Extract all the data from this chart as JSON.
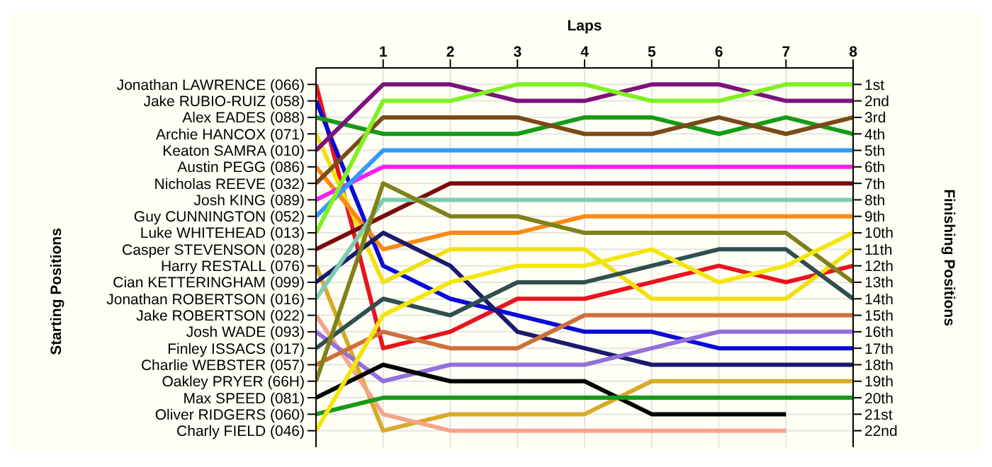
{
  "chart_data": {
    "type": "line",
    "xlabel": "Laps",
    "annotations": [
      "Starting Positions"
    ],
    "y2label": "Finishing Positions",
    "x": [
      0,
      1,
      2,
      3,
      4,
      5,
      6,
      7,
      8
    ],
    "xlim": [
      0,
      8
    ],
    "xticks": [
      1,
      2,
      3,
      4,
      5,
      6,
      7,
      8
    ],
    "y_categories": [
      "Jonathan LAWRENCE (066)",
      "Jake RUBIO-RUIZ (058)",
      "Alex EADES (088)",
      "Archie HANCOX (071)",
      "Keaton SAMRA (010)",
      "Austin PEGG (086)",
      "Nicholas REEVE (032)",
      "Josh KING (089)",
      "Guy CUNNINGTON (052)",
      "Luke WHITEHEAD (013)",
      "Casper STEVENSON (028)",
      "Harry RESTALL (076)",
      "Cian KETTERINGHAM (099)",
      "Jonathan ROBERTSON (016)",
      "Jake ROBERTSON (022)",
      "Josh WADE (093)",
      "Finley ISSACS (017)",
      "Charlie WEBSTER (057)",
      "Oakley PRYER (66H)",
      "Max SPEED (081)",
      "Oliver RIDGERS (060)",
      "Charly FIELD (046)"
    ],
    "y2lim": [
      23,
      0
    ],
    "y2ticks": [
      {
        "value": 1,
        "label": "1st"
      },
      {
        "value": 2,
        "label": "2nd"
      },
      {
        "value": 3,
        "label": "3rd"
      },
      {
        "value": 4,
        "label": "4th"
      },
      {
        "value": 5,
        "label": "5th"
      },
      {
        "value": 6,
        "label": "6th"
      },
      {
        "value": 7,
        "label": "7th"
      },
      {
        "value": 8,
        "label": "8th"
      },
      {
        "value": 9,
        "label": "9th"
      },
      {
        "value": 10,
        "label": "10th"
      },
      {
        "value": 11,
        "label": "11th"
      },
      {
        "value": 12,
        "label": "12th"
      },
      {
        "value": 13,
        "label": "13th"
      },
      {
        "value": 14,
        "label": "14th"
      },
      {
        "value": 15,
        "label": "15th"
      },
      {
        "value": 16,
        "label": "16th"
      },
      {
        "value": 17,
        "label": "17th"
      },
      {
        "value": 18,
        "label": "18th"
      },
      {
        "value": 19,
        "label": "19th"
      },
      {
        "value": 20,
        "label": "20th"
      },
      {
        "value": 21,
        "label": "21st"
      },
      {
        "value": 22,
        "label": "22nd"
      }
    ],
    "grid": true,
    "legend": false,
    "marker": "none",
    "line_style": "solid",
    "series": [
      {
        "axis": "y2",
        "color": "#e8141c",
        "values": [
          1,
          17,
          16,
          14,
          14,
          13,
          12,
          13,
          12
        ]
      },
      {
        "axis": "y2",
        "color": "#0b0bd6",
        "values": [
          2,
          12,
          14,
          15,
          16,
          16,
          17,
          17,
          17
        ]
      },
      {
        "axis": "y2",
        "color": "#169b16",
        "values": [
          3,
          4,
          4,
          4,
          3,
          3,
          4,
          3,
          4
        ]
      },
      {
        "axis": "y2",
        "color": "#f2e010",
        "values": [
          4,
          13,
          11,
          11,
          11,
          14,
          14,
          14,
          11
        ]
      },
      {
        "axis": "y2",
        "color": "#7b137b",
        "values": [
          5,
          1,
          1,
          2,
          2,
          1,
          1,
          2,
          2
        ]
      },
      {
        "axis": "y2",
        "color": "#f98a14",
        "values": [
          6,
          11,
          10,
          10,
          9,
          9,
          9,
          9,
          9
        ]
      },
      {
        "axis": "y2",
        "color": "#7b4a17",
        "values": [
          7,
          3,
          3,
          3,
          4,
          4,
          3,
          4,
          3
        ]
      },
      {
        "axis": "y2",
        "color": "#f520f5",
        "values": [
          8,
          6,
          6,
          6,
          6,
          6,
          6,
          6,
          6
        ]
      },
      {
        "axis": "y2",
        "color": "#3399ff",
        "values": [
          9,
          5,
          5,
          5,
          5,
          5,
          5,
          5,
          5
        ]
      },
      {
        "axis": "y2",
        "color": "#80f020",
        "values": [
          10,
          2,
          2,
          1,
          1,
          2,
          2,
          1,
          1
        ]
      },
      {
        "axis": "y2",
        "color": "#7d0a0a",
        "values": [
          11,
          9,
          7,
          7,
          7,
          7,
          7,
          7,
          7
        ]
      },
      {
        "axis": "y2",
        "color": "#d6aa28",
        "values": [
          12,
          22,
          21,
          21,
          21,
          19,
          19,
          19,
          19
        ]
      },
      {
        "axis": "y2",
        "color": "#1a1a6e",
        "values": [
          13,
          10,
          12,
          16,
          17,
          18,
          18,
          18,
          18
        ]
      },
      {
        "axis": "y2",
        "color": "#7ecbb0",
        "values": [
          14,
          8,
          8,
          8,
          8,
          8,
          8,
          8,
          8
        ]
      },
      {
        "axis": "y2",
        "color": "#f5a48a",
        "values": [
          15,
          21,
          22,
          22,
          22,
          22,
          22,
          22,
          null
        ]
      },
      {
        "axis": "y2",
        "color": "#9370db",
        "values": [
          16,
          19,
          18,
          18,
          18,
          17,
          16,
          16,
          16
        ]
      },
      {
        "axis": "y2",
        "color": "#2f4f4f",
        "values": [
          17,
          14,
          15,
          13,
          13,
          12,
          11,
          11,
          14
        ]
      },
      {
        "axis": "y2",
        "color": "#cd6f3a",
        "values": [
          18,
          16,
          17,
          17,
          15,
          15,
          15,
          15,
          15
        ]
      },
      {
        "axis": "y2",
        "color": "#808018",
        "values": [
          19,
          7,
          9,
          9,
          10,
          10,
          10,
          10,
          13
        ]
      },
      {
        "axis": "y2",
        "color": "#000000",
        "values": [
          20,
          18,
          19,
          19,
          19,
          21,
          21,
          21,
          null
        ]
      },
      {
        "axis": "y2",
        "color": "#199919",
        "values": [
          21,
          20,
          20,
          20,
          20,
          20,
          20,
          20,
          20
        ]
      },
      {
        "axis": "y2",
        "color": "#f5e60a",
        "values": [
          22,
          15,
          13,
          12,
          12,
          11,
          13,
          12,
          10
        ]
      }
    ]
  }
}
